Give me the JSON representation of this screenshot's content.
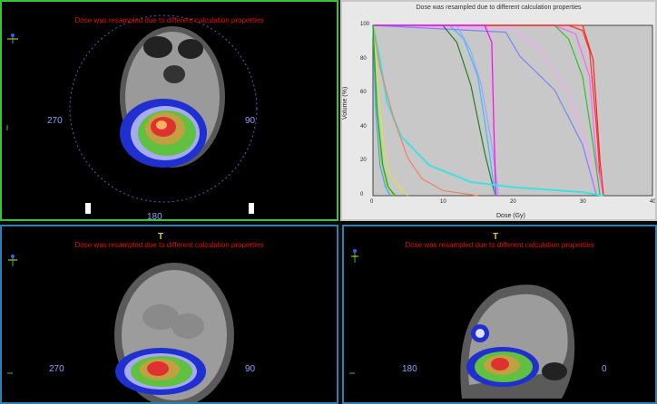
{
  "warning": "Dose was resampled due to different calculation properties",
  "axial": {
    "deg_left": "270",
    "deg_right": "90",
    "deg_bottom": "180"
  },
  "coronal": {
    "deg_left": "270",
    "deg_right": "90",
    "top_marker": "T"
  },
  "sagittal": {
    "deg_left": "180",
    "deg_right": "0",
    "top_marker": "T"
  },
  "colors": {
    "active_border": "#38c23a",
    "inactive_border": "#2e7fb0",
    "warning": "#e01010",
    "angle": "#8ea0ff"
  },
  "chart_data": {
    "type": "line",
    "title": "Dose was resampled due to different calculation properties",
    "xlabel": "Dose (Gy)",
    "ylabel": "Volume (%)",
    "xlim": [
      0,
      40
    ],
    "ylim": [
      0,
      100
    ],
    "xticks": [
      "0",
      "10",
      "20",
      "30",
      "40"
    ],
    "yticks": [
      "0",
      "20",
      "40",
      "60",
      "80",
      "100"
    ],
    "series": [
      {
        "color": "#ff3030",
        "x": [
          0,
          28,
          30,
          31,
          32,
          32.5,
          33
        ],
        "y": [
          100,
          100,
          97,
          85,
          40,
          10,
          0
        ]
      },
      {
        "color": "#ff60ff",
        "x": [
          0,
          26,
          29,
          31,
          32,
          33
        ],
        "y": [
          100,
          100,
          95,
          70,
          20,
          0
        ]
      },
      {
        "color": "#30c030",
        "x": [
          0,
          26,
          28,
          30,
          31.5,
          32.5
        ],
        "y": [
          100,
          100,
          92,
          70,
          30,
          0
        ]
      },
      {
        "color": "#ffa0ff",
        "x": [
          0,
          20,
          24,
          28,
          31,
          32
        ],
        "y": [
          100,
          98,
          85,
          60,
          25,
          0
        ]
      },
      {
        "color": "#8080ff",
        "x": [
          0,
          19,
          21,
          26,
          30,
          32
        ],
        "y": [
          100,
          96,
          82,
          62,
          30,
          0
        ]
      },
      {
        "color": "#ff2020",
        "x": [
          0,
          30,
          31.5,
          32.5,
          33
        ],
        "y": [
          100,
          100,
          80,
          20,
          0
        ]
      },
      {
        "color": "#208020",
        "x": [
          0,
          10,
          12,
          14,
          16,
          17.5
        ],
        "y": [
          100,
          100,
          90,
          65,
          25,
          0
        ]
      },
      {
        "color": "#30c0ff",
        "x": [
          0,
          11,
          13,
          15,
          16.5,
          17.5
        ],
        "y": [
          100,
          100,
          92,
          70,
          30,
          0
        ]
      },
      {
        "color": "#a0a0ff",
        "x": [
          0,
          12,
          14,
          15.5,
          17,
          18
        ],
        "y": [
          100,
          100,
          85,
          65,
          30,
          0
        ]
      },
      {
        "color": "#ff00ff",
        "x": [
          0,
          16,
          17,
          17.3,
          17.6
        ],
        "y": [
          100,
          100,
          90,
          40,
          0
        ]
      },
      {
        "color": "#40e0e0",
        "x": [
          0,
          1,
          2,
          4,
          8,
          14,
          20,
          30,
          33
        ],
        "y": [
          100,
          80,
          55,
          35,
          18,
          8,
          5,
          2,
          0
        ]
      },
      {
        "color": "#f08060",
        "x": [
          0,
          1,
          3,
          5,
          7,
          10,
          15
        ],
        "y": [
          100,
          75,
          45,
          22,
          10,
          3,
          0
        ]
      },
      {
        "color": "#e0e040",
        "x": [
          0,
          0.8,
          1.5,
          2.5,
          4,
          5
        ],
        "y": [
          100,
          60,
          30,
          12,
          4,
          0
        ]
      },
      {
        "color": "#c0c000",
        "x": [
          0,
          0.5,
          1.2,
          2,
          3
        ],
        "y": [
          100,
          55,
          20,
          6,
          0
        ]
      },
      {
        "color": "#40a0ff",
        "x": [
          0,
          0.4,
          1,
          1.8,
          2.5
        ],
        "y": [
          100,
          50,
          18,
          5,
          0
        ]
      },
      {
        "color": "#00c000",
        "x": [
          0,
          0.6,
          1.4,
          2.2,
          3.2
        ],
        "y": [
          100,
          50,
          18,
          5,
          0
        ]
      }
    ]
  }
}
